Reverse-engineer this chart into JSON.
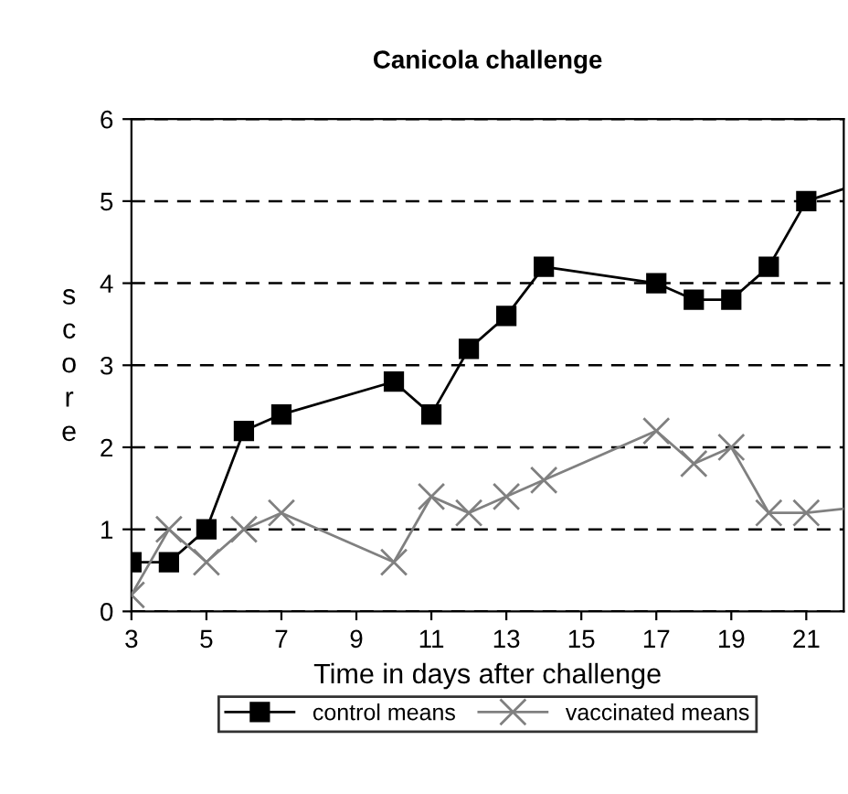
{
  "chart_data": {
    "type": "line",
    "title": "Canicola challenge",
    "xlabel": "Time in days after challenge",
    "ylabel": "s\nc\no\nr\ne",
    "xlim": [
      3,
      22
    ],
    "xticks": [
      3,
      5,
      7,
      9,
      11,
      13,
      15,
      17,
      19,
      21
    ],
    "ylim": [
      0,
      6
    ],
    "yticks": [
      0,
      1,
      2,
      3,
      4,
      5,
      6
    ],
    "grid": "y",
    "legend": "bottom",
    "series": [
      {
        "name": "control means",
        "color": "#000000",
        "marker": "square",
        "x": [
          3,
          4,
          5,
          6,
          7,
          10,
          11,
          12,
          13,
          14,
          17,
          18,
          19,
          20,
          21,
          22
        ],
        "values": [
          0.6,
          0.6,
          1.0,
          2.2,
          2.4,
          2.8,
          2.4,
          3.2,
          3.6,
          4.2,
          4.0,
          3.8,
          3.8,
          4.2,
          5.0,
          5.15
        ]
      },
      {
        "name": "vaccinated means",
        "color": "#808080",
        "marker": "cross",
        "x": [
          3,
          4,
          5,
          6,
          7,
          10,
          11,
          12,
          13,
          14,
          17,
          18,
          19,
          20,
          21,
          22
        ],
        "values": [
          0.2,
          1.0,
          0.6,
          1.0,
          1.2,
          0.6,
          1.4,
          1.2,
          1.4,
          1.6,
          2.2,
          1.8,
          2.0,
          1.2,
          1.2,
          1.25
        ]
      }
    ]
  }
}
